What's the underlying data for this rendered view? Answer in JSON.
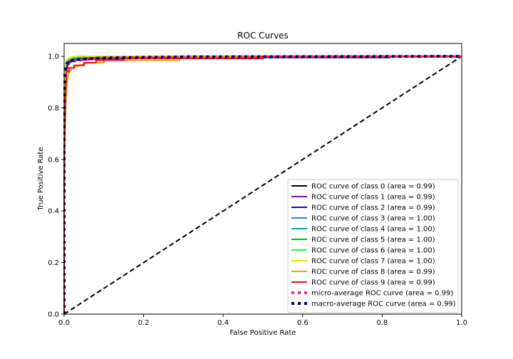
{
  "chart_data": {
    "type": "line",
    "title": "ROC Curves",
    "xlabel": "False Positive Rate",
    "ylabel": "True Positive Rate",
    "xlim": [
      0.0,
      1.0
    ],
    "ylim": [
      0.0,
      1.05
    ],
    "x_ticks": [
      "0.0",
      "0.2",
      "0.4",
      "0.6",
      "0.8",
      "1.0"
    ],
    "y_ticks": [
      "0.0",
      "0.2",
      "0.4",
      "0.6",
      "0.8",
      "1.0"
    ],
    "x_tick_values": [
      0.0,
      0.2,
      0.4,
      0.6,
      0.8,
      1.0
    ],
    "y_tick_values": [
      0.0,
      0.2,
      0.4,
      0.6,
      0.8,
      1.0
    ],
    "grid": false,
    "legend_position": "lower-right",
    "series": [
      {
        "name": "ROC curve of class 0 (area = 0.99)",
        "color": "#000000",
        "style": "solid",
        "x": [
          0.0,
          0.0,
          0.003,
          0.005,
          0.008,
          0.012,
          0.02,
          0.05,
          0.15,
          1.0
        ],
        "y": [
          0.0,
          0.55,
          0.85,
          0.93,
          0.96,
          0.98,
          0.99,
          0.995,
          1.0,
          1.0
        ]
      },
      {
        "name": "ROC curve of class 1 (area = 0.99)",
        "color": "#7f0ea8",
        "style": "solid",
        "x": [
          0.0,
          0.0,
          0.002,
          0.005,
          0.01,
          0.02,
          0.05,
          0.2,
          1.0
        ],
        "y": [
          0.0,
          0.6,
          0.88,
          0.95,
          0.975,
          0.985,
          0.99,
          0.998,
          1.0
        ]
      },
      {
        "name": "ROC curve of class 2 (area = 0.99)",
        "color": "#1010a0",
        "style": "solid",
        "x": [
          0.0,
          0.0,
          0.003,
          0.006,
          0.01,
          0.03,
          0.1,
          0.3,
          0.82,
          0.82,
          1.0
        ],
        "y": [
          0.0,
          0.62,
          0.9,
          0.96,
          0.975,
          0.985,
          0.99,
          0.995,
          0.995,
          1.0,
          1.0
        ]
      },
      {
        "name": "ROC curve of class 3 (area = 1.00)",
        "color": "#1a90e0",
        "style": "solid",
        "x": [
          0.0,
          0.0,
          0.002,
          0.004,
          0.008,
          0.02,
          0.06,
          1.0
        ],
        "y": [
          0.0,
          0.7,
          0.9,
          0.96,
          0.985,
          0.99,
          1.0,
          1.0
        ]
      },
      {
        "name": "ROC curve of class 4 (area = 1.00)",
        "color": "#00a09a",
        "style": "solid",
        "x": [
          0.0,
          0.0,
          0.002,
          0.004,
          0.008,
          0.03,
          0.08,
          1.0
        ],
        "y": [
          0.0,
          0.75,
          0.92,
          0.97,
          0.985,
          0.992,
          1.0,
          1.0
        ]
      },
      {
        "name": "ROC curve of class 5 (area = 1.00)",
        "color": "#0fb81a",
        "style": "solid",
        "x": [
          0.0,
          0.0,
          0.002,
          0.005,
          0.01,
          0.03,
          1.0
        ],
        "y": [
          0.0,
          0.8,
          0.95,
          0.98,
          0.99,
          1.0,
          1.0
        ]
      },
      {
        "name": "ROC curve of class 6 (area = 1.00)",
        "color": "#2ef52e",
        "style": "solid",
        "x": [
          0.0,
          0.0,
          0.003,
          0.006,
          0.015,
          0.03,
          1.0
        ],
        "y": [
          0.0,
          0.85,
          0.96,
          0.985,
          0.99,
          1.0,
          1.0
        ]
      },
      {
        "name": "ROC curve of class 7 (area = 1.00)",
        "color": "#e8e800",
        "style": "solid",
        "x": [
          0.0,
          0.0,
          0.002,
          0.004,
          0.006,
          0.012,
          0.025,
          1.0
        ],
        "y": [
          0.0,
          0.85,
          0.95,
          0.97,
          0.985,
          0.993,
          1.0,
          1.0
        ]
      },
      {
        "name": "ROC curve of class 8 (area = 0.99)",
        "color": "#ff9900",
        "style": "solid",
        "x": [
          0.0,
          0.0,
          0.002,
          0.004,
          0.006,
          0.01,
          0.02,
          0.04,
          0.06,
          0.1,
          0.1,
          0.2,
          0.29,
          0.29,
          0.45,
          0.45,
          1.0
        ],
        "y": [
          0.0,
          0.4,
          0.65,
          0.8,
          0.88,
          0.93,
          0.955,
          0.965,
          0.975,
          0.975,
          0.985,
          0.985,
          0.985,
          0.993,
          0.993,
          1.0,
          1.0
        ]
      },
      {
        "name": "ROC curve of class 9 (area = 0.99)",
        "color": "#e81010",
        "style": "solid",
        "x": [
          0.0,
          0.0,
          0.003,
          0.006,
          0.006,
          0.012,
          0.012,
          0.025,
          0.025,
          0.05,
          0.05,
          0.08,
          0.08,
          0.15,
          0.15,
          0.5,
          0.5,
          1.0
        ],
        "y": [
          0.0,
          0.6,
          0.85,
          0.93,
          0.94,
          0.94,
          0.955,
          0.955,
          0.965,
          0.965,
          0.975,
          0.975,
          0.985,
          0.985,
          0.992,
          0.992,
          1.0,
          1.0
        ]
      },
      {
        "name": "micro-average ROC curve (area = 0.99)",
        "color": "#ff1f7a",
        "style": "dotted",
        "x": [
          0.0,
          0.0,
          0.002,
          0.005,
          0.01,
          0.02,
          0.05,
          0.1,
          0.3,
          1.0
        ],
        "y": [
          0.0,
          0.7,
          0.9,
          0.95,
          0.97,
          0.98,
          0.988,
          0.993,
          0.998,
          1.0
        ]
      },
      {
        "name": "macro-average ROC curve (area = 0.99)",
        "color": "#000066",
        "style": "dotted",
        "x": [
          0.0,
          0.0,
          0.002,
          0.005,
          0.01,
          0.02,
          0.05,
          0.1,
          0.3,
          1.0
        ],
        "y": [
          0.0,
          0.75,
          0.93,
          0.965,
          0.98,
          0.985,
          0.99,
          0.994,
          0.998,
          1.0
        ]
      }
    ],
    "reference_line": {
      "x": [
        0.0,
        1.0
      ],
      "y": [
        0.0,
        1.0
      ],
      "color": "#000000",
      "style": "dashed"
    }
  }
}
